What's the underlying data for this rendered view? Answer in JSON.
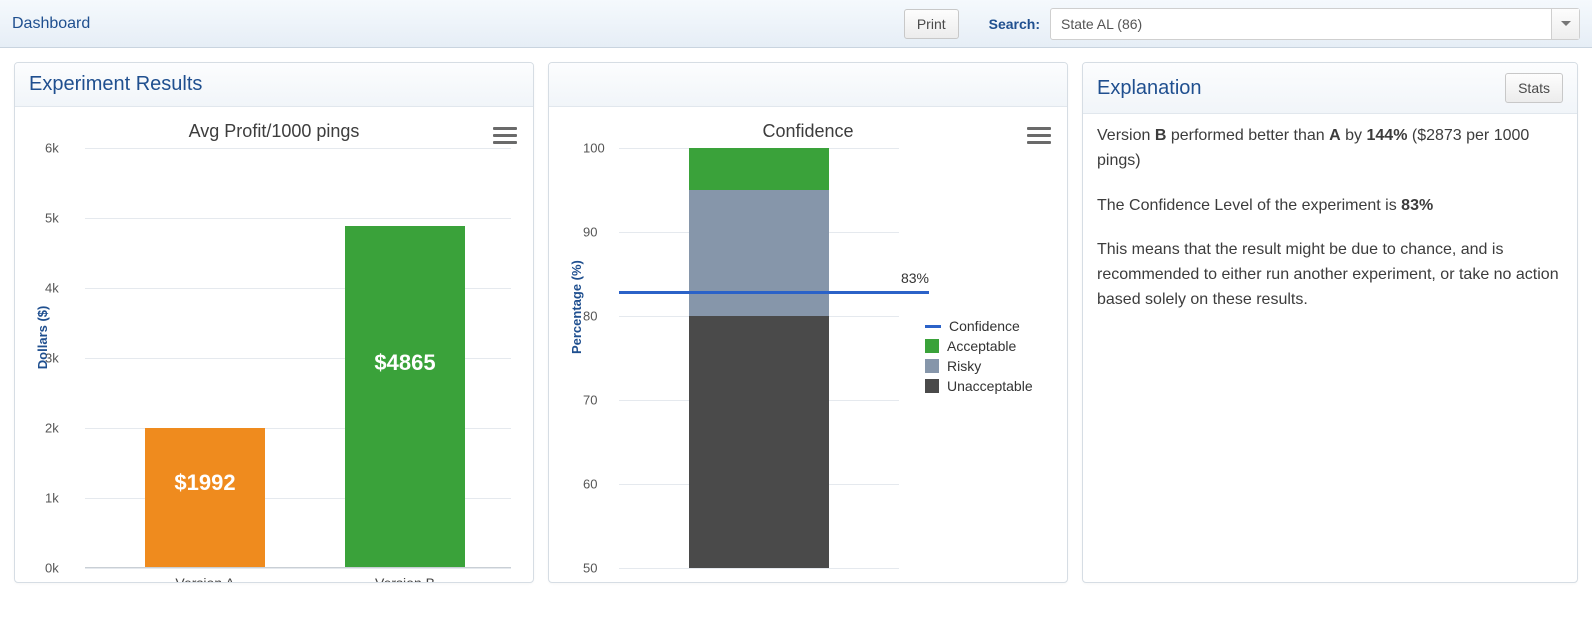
{
  "topbar": {
    "title": "Dashboard",
    "print_label": "Print",
    "search_label": "Search:",
    "search_value": "State AL (86)"
  },
  "results_panel": {
    "title": "Experiment Results",
    "chart": {
      "type": "bar",
      "title": "Avg Profit/1000 pings",
      "ylabel": "Dollars ($)",
      "ylim": [
        0,
        6000
      ],
      "ytick_step": 1000,
      "ytick_suffix": "k",
      "grid_color": "#e5e9ee",
      "background_color": "#ffffff",
      "bars": [
        {
          "label": "Version A",
          "value": 1992,
          "value_text": "$1992",
          "color": "#ef8b1e"
        },
        {
          "label": "Version B",
          "value": 4865,
          "value_text": "$4865",
          "color": "#3aa23a"
        }
      ],
      "bar_value_fontsize": 22,
      "bar_value_color": "#ffffff",
      "title_fontsize": 18,
      "label_fontsize": 13
    }
  },
  "confidence_panel": {
    "chart": {
      "type": "stacked-bar",
      "title": "Confidence",
      "ylabel": "Percentage (%)",
      "ylim": [
        50,
        100
      ],
      "ytick_step": 10,
      "grid_color": "#e5e9ee",
      "background_color": "#ffffff",
      "segments": [
        {
          "name": "Unacceptable",
          "from": 50,
          "to": 80,
          "color": "#4a4a4a"
        },
        {
          "name": "Risky",
          "from": 80,
          "to": 95,
          "color": "#8696aa"
        },
        {
          "name": "Acceptable",
          "from": 95,
          "to": 100,
          "color": "#3aa23a"
        }
      ],
      "confidence_line": {
        "value": 83,
        "label": "83%",
        "color": "#2b62c8",
        "width": 3
      },
      "legend": [
        {
          "name": "Confidence",
          "kind": "line",
          "color": "#2b62c8"
        },
        {
          "name": "Acceptable",
          "kind": "swatch",
          "color": "#3aa23a"
        },
        {
          "name": "Risky",
          "kind": "swatch",
          "color": "#8696aa"
        },
        {
          "name": "Unacceptable",
          "kind": "swatch",
          "color": "#4a4a4a"
        }
      ]
    }
  },
  "explain_panel": {
    "title": "Explanation",
    "stats_label": "Stats",
    "p1_pre": "Version ",
    "p1_b1": "B",
    "p1_mid1": " performed better than ",
    "p1_b2": "A",
    "p1_mid2": " by ",
    "p1_b3": "144%",
    "p1_post": " ($2873 per 1000 pings)",
    "p2_pre": "The Confidence Level of the experiment is ",
    "p2_b1": "83%",
    "p3": "This means that the result might be due to chance, and is recommended to either run another experiment, or take no action based solely on these results."
  }
}
